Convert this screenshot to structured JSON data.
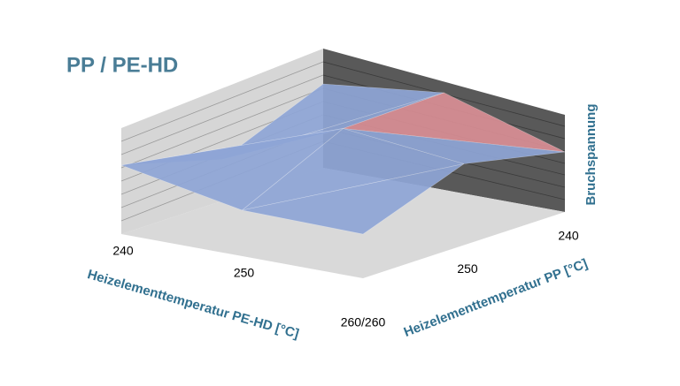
{
  "chart_data": {
    "type": "surface",
    "title": "PP / PE-HD",
    "x_label": "Heizelementtemperatur PE-HD [°C]",
    "y_label": "Heizelementtemperatur PP [°C]",
    "z_label": "Bruchspannung",
    "x_categories": [
      "240",
      "250",
      null
    ],
    "y_categories": [
      "240",
      "250",
      null
    ],
    "corner_label": "260/260",
    "values": [
      [
        33.75,
        21.75,
        29.5
      ],
      [
        37.5,
        36.75,
        23
      ],
      [
        27,
        33,
        22.5
      ]
    ],
    "zlim": [
      10,
      40
    ],
    "band_colors": [
      "#31859c",
      "#e3833a",
      "#8ea5d6",
      "#d98e95"
    ]
  }
}
